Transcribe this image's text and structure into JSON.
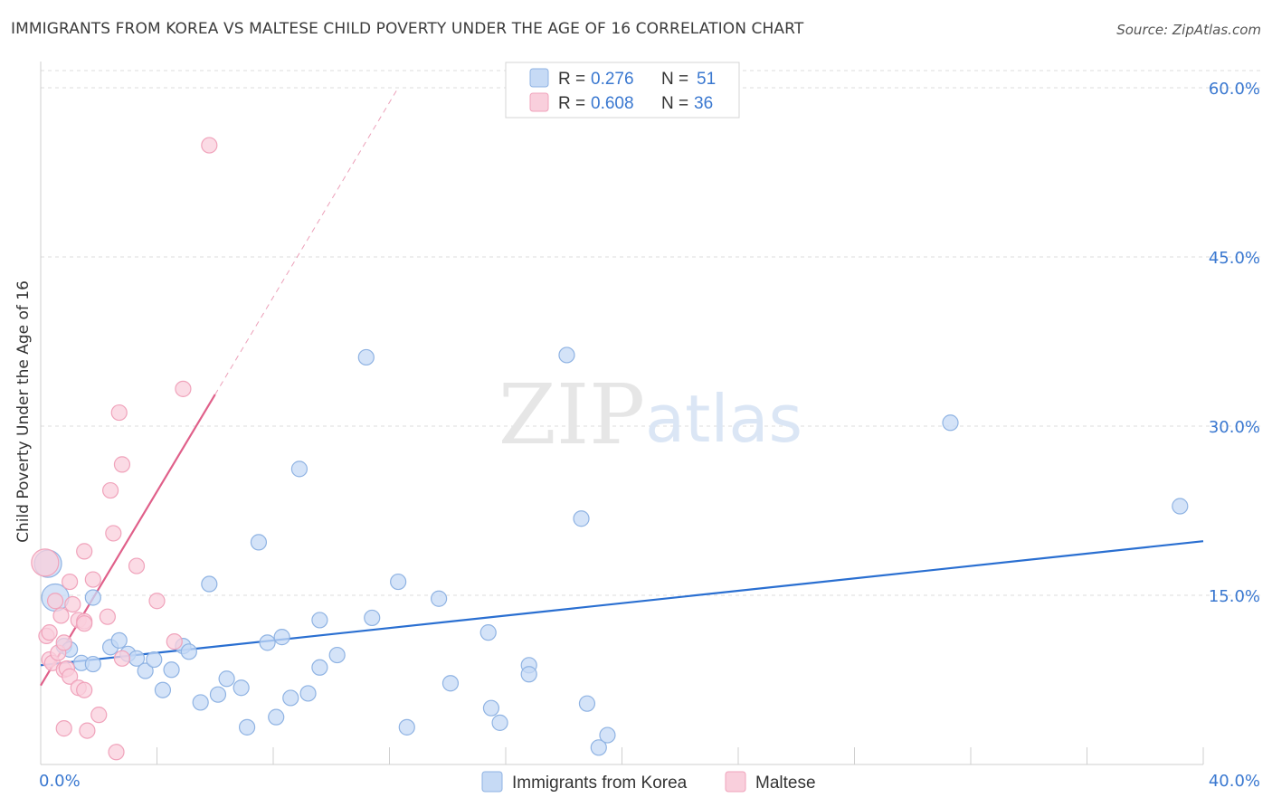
{
  "header": {
    "title": "IMMIGRANTS FROM KOREA VS MALTESE CHILD POVERTY UNDER THE AGE OF 16 CORRELATION CHART",
    "source": "Source: ZipAtlas.com"
  },
  "watermark": {
    "zip": "ZIP",
    "atlas": "atlas"
  },
  "colors": {
    "korea_fill": "#c6daf5",
    "korea_stroke": "#8fb3e3",
    "korea_line": "#2a6fd1",
    "maltese_fill": "#f9cfdc",
    "maltese_stroke": "#f0a3bb",
    "maltese_line": "#e0608a",
    "axis_text": "#3a78d0",
    "grid": "#dddddd"
  },
  "chart_data": {
    "type": "scatter",
    "title": "IMMIGRANTS FROM KOREA VS MALTESE CHILD POVERTY UNDER THE AGE OF 16 CORRELATION CHART",
    "xlabel": "",
    "ylabel": "Child Poverty Under the Age of 16",
    "xlim": [
      0,
      40
    ],
    "ylim": [
      0,
      60
    ],
    "x_tick_labels": [
      "0.0%",
      "40.0%"
    ],
    "y_ticks": [
      15,
      30,
      45,
      60
    ],
    "y_tick_labels": [
      "15.0%",
      "30.0%",
      "45.0%",
      "60.0%"
    ],
    "legend": [
      {
        "name": "Immigrants from Korea",
        "r_label": "R =",
        "r": "0.276",
        "n_label": "N =",
        "n": "51"
      },
      {
        "name": "Maltese",
        "r_label": "R =",
        "r": "0.608",
        "n_label": "N =",
        "n": "36"
      }
    ],
    "series": [
      {
        "name": "Immigrants from Korea",
        "trend": {
          "x": [
            0,
            40
          ],
          "y": [
            8.8,
            19.8
          ],
          "dashed_extension": false
        },
        "points": [
          {
            "x": 0.25,
            "y": 17.8,
            "big": true
          },
          {
            "x": 0.5,
            "y": 14.8,
            "big": true
          },
          {
            "x": 0.8,
            "y": 10.5
          },
          {
            "x": 1.0,
            "y": 10.2
          },
          {
            "x": 1.4,
            "y": 9.0
          },
          {
            "x": 1.8,
            "y": 8.9
          },
          {
            "x": 1.8,
            "y": 14.8
          },
          {
            "x": 2.4,
            "y": 10.4
          },
          {
            "x": 2.7,
            "y": 11.0
          },
          {
            "x": 3.0,
            "y": 9.8
          },
          {
            "x": 3.3,
            "y": 9.4
          },
          {
            "x": 3.6,
            "y": 8.3
          },
          {
            "x": 3.9,
            "y": 9.3
          },
          {
            "x": 4.2,
            "y": 6.6
          },
          {
            "x": 4.5,
            "y": 8.4
          },
          {
            "x": 4.9,
            "y": 10.5
          },
          {
            "x": 5.1,
            "y": 10.0
          },
          {
            "x": 5.5,
            "y": 5.5
          },
          {
            "x": 5.8,
            "y": 16.0
          },
          {
            "x": 6.1,
            "y": 6.2
          },
          {
            "x": 6.4,
            "y": 7.6
          },
          {
            "x": 6.9,
            "y": 6.8
          },
          {
            "x": 7.1,
            "y": 3.3
          },
          {
            "x": 7.5,
            "y": 19.7
          },
          {
            "x": 7.8,
            "y": 10.8
          },
          {
            "x": 8.1,
            "y": 4.2
          },
          {
            "x": 8.3,
            "y": 11.3
          },
          {
            "x": 8.6,
            "y": 5.9
          },
          {
            "x": 8.9,
            "y": 26.2
          },
          {
            "x": 9.2,
            "y": 6.3
          },
          {
            "x": 9.6,
            "y": 12.8
          },
          {
            "x": 9.6,
            "y": 8.6
          },
          {
            "x": 10.2,
            "y": 9.7
          },
          {
            "x": 11.2,
            "y": 36.1
          },
          {
            "x": 11.4,
            "y": 13.0
          },
          {
            "x": 12.3,
            "y": 16.2
          },
          {
            "x": 12.6,
            "y": 3.3
          },
          {
            "x": 13.7,
            "y": 14.7
          },
          {
            "x": 14.1,
            "y": 7.2
          },
          {
            "x": 15.4,
            "y": 11.7
          },
          {
            "x": 15.5,
            "y": 5.0
          },
          {
            "x": 15.8,
            "y": 3.7
          },
          {
            "x": 16.8,
            "y": 8.8
          },
          {
            "x": 16.8,
            "y": 8.0
          },
          {
            "x": 18.1,
            "y": 36.3
          },
          {
            "x": 18.6,
            "y": 21.8
          },
          {
            "x": 18.8,
            "y": 5.4
          },
          {
            "x": 19.2,
            "y": 1.5
          },
          {
            "x": 19.5,
            "y": 2.6
          },
          {
            "x": 31.3,
            "y": 30.3
          },
          {
            "x": 39.2,
            "y": 22.9
          }
        ]
      },
      {
        "name": "Maltese",
        "trend": {
          "x": [
            0,
            6
          ],
          "y": [
            7.0,
            32.8
          ],
          "dashed_to": [
            12.3,
            60
          ]
        },
        "points": [
          {
            "x": 0.15,
            "y": 17.9,
            "big": true
          },
          {
            "x": 0.2,
            "y": 11.4
          },
          {
            "x": 0.3,
            "y": 11.7
          },
          {
            "x": 0.3,
            "y": 9.3
          },
          {
            "x": 0.4,
            "y": 9.0
          },
          {
            "x": 0.5,
            "y": 14.5
          },
          {
            "x": 0.6,
            "y": 9.9
          },
          {
            "x": 0.7,
            "y": 13.2
          },
          {
            "x": 0.8,
            "y": 10.8
          },
          {
            "x": 0.8,
            "y": 8.4
          },
          {
            "x": 0.8,
            "y": 3.2
          },
          {
            "x": 0.9,
            "y": 8.5
          },
          {
            "x": 1.0,
            "y": 7.8
          },
          {
            "x": 1.0,
            "y": 16.2
          },
          {
            "x": 1.1,
            "y": 14.2
          },
          {
            "x": 1.3,
            "y": 12.8
          },
          {
            "x": 1.3,
            "y": 6.8
          },
          {
            "x": 1.5,
            "y": 6.6
          },
          {
            "x": 1.5,
            "y": 12.7
          },
          {
            "x": 1.5,
            "y": 12.5
          },
          {
            "x": 1.5,
            "y": 18.9
          },
          {
            "x": 1.6,
            "y": 3.0
          },
          {
            "x": 1.8,
            "y": 16.4
          },
          {
            "x": 2.0,
            "y": 4.4
          },
          {
            "x": 2.3,
            "y": 13.1
          },
          {
            "x": 2.4,
            "y": 24.3
          },
          {
            "x": 2.5,
            "y": 20.5
          },
          {
            "x": 2.6,
            "y": 1.1
          },
          {
            "x": 2.7,
            "y": 31.2
          },
          {
            "x": 2.8,
            "y": 26.6
          },
          {
            "x": 2.8,
            "y": 9.4
          },
          {
            "x": 3.3,
            "y": 17.6
          },
          {
            "x": 4.0,
            "y": 14.5
          },
          {
            "x": 4.6,
            "y": 10.9
          },
          {
            "x": 4.9,
            "y": 33.3
          },
          {
            "x": 5.8,
            "y": 54.9
          }
        ]
      }
    ]
  }
}
